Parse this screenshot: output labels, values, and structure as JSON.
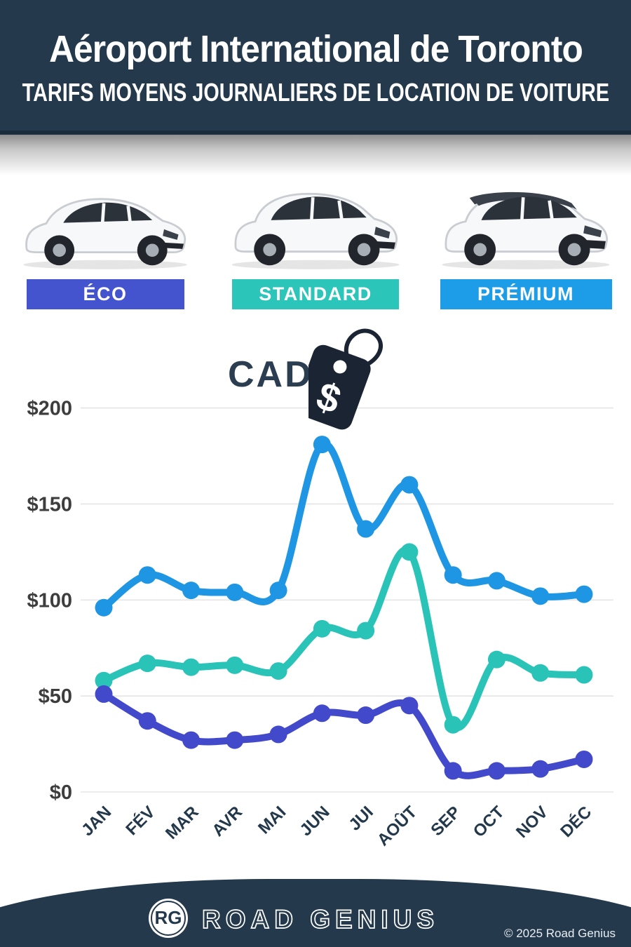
{
  "header": {
    "title": "Aéroport International de Toronto",
    "subtitle": "TARIFS MOYENS JOURNALIERS DE LOCATION DE VOITURE"
  },
  "categories": [
    {
      "label": "ÉCO",
      "color": "#4354ce",
      "car": "hatchback"
    },
    {
      "label": "STANDARD",
      "color": "#2cc5b9",
      "car": "suv"
    },
    {
      "label": "PRÉMIUM",
      "color": "#1d9ce8",
      "car": "suv-dark-roof"
    }
  ],
  "currency_badge": {
    "label": "CAD",
    "tag_symbol": "$"
  },
  "chart_data": {
    "type": "line",
    "title": "Tarifs moyens journaliers de location de voiture (CAD $)",
    "categories": [
      "JAN",
      "FÉV",
      "MAR",
      "AVR",
      "MAI",
      "JUN",
      "JUI",
      "AOÛT",
      "SEP",
      "OCT",
      "NOV",
      "DÉC"
    ],
    "series": [
      {
        "name": "PRÉMIUM",
        "color": "#1e96e4",
        "values": [
          96,
          113,
          105,
          104,
          105,
          181,
          137,
          160,
          113,
          110,
          102,
          103
        ]
      },
      {
        "name": "STANDARD",
        "color": "#2ac3b8",
        "values": [
          58,
          67,
          65,
          66,
          63,
          85,
          84,
          125,
          35,
          69,
          62,
          61
        ]
      },
      {
        "name": "ÉCO",
        "color": "#4349cb",
        "values": [
          51,
          37,
          27,
          27,
          30,
          41,
          40,
          45,
          11,
          11,
          12,
          17
        ]
      }
    ],
    "ylabel": "CAD $",
    "ylim": [
      0,
      200
    ],
    "y_ticks": [
      "$200",
      "$150",
      "$100",
      "$50",
      "$0"
    ],
    "y_tick_values": [
      200,
      150,
      100,
      50,
      0
    ],
    "grid": true,
    "legend_position": "none"
  },
  "footer": {
    "logo_initials": "RG",
    "brand": "ROAD GENIUS",
    "copyright": "© 2025 Road Genius"
  }
}
